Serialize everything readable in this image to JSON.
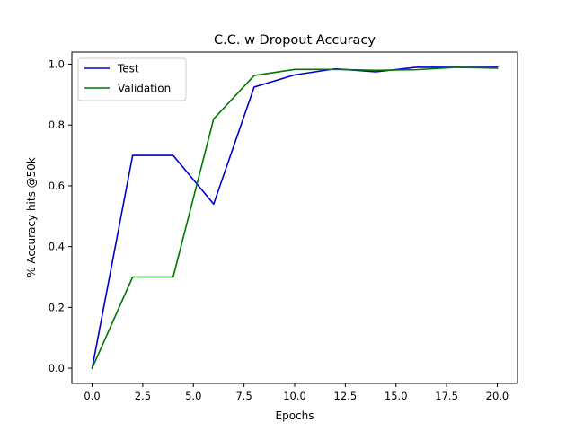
{
  "chart_data": {
    "type": "line",
    "title": "C.C. w Dropout  Accuracy",
    "xlabel": "Epochs",
    "ylabel": "% Accuracy hits @50k",
    "xlim": [
      -1,
      21
    ],
    "ylim": [
      -0.05,
      1.04
    ],
    "xticks": [
      0.0,
      2.5,
      5.0,
      7.5,
      10.0,
      12.5,
      15.0,
      17.5,
      20.0
    ],
    "yticks": [
      0.0,
      0.2,
      0.4,
      0.6,
      0.8,
      1.0
    ],
    "grid": false,
    "legend_position": "top-left",
    "x": [
      0,
      2,
      4,
      6,
      8,
      10,
      12,
      14,
      16,
      18,
      20
    ],
    "series": [
      {
        "name": "Test",
        "color": "#0000cc",
        "values": [
          0.0,
          0.7,
          0.7,
          0.54,
          0.925,
          0.965,
          0.985,
          0.975,
          0.99,
          0.99,
          0.99
        ]
      },
      {
        "name": "Validation",
        "color": "#007700",
        "values": [
          0.0,
          0.3,
          0.3,
          0.82,
          0.963,
          0.983,
          0.983,
          0.98,
          0.982,
          0.99,
          0.987
        ]
      }
    ]
  }
}
